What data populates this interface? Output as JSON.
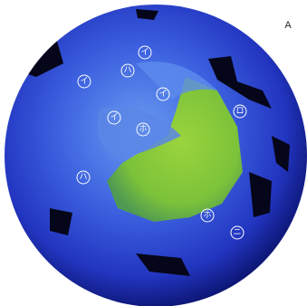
{
  "panel_label": "A",
  "labels": [
    "イ",
    "ハ",
    "イ",
    "イ",
    "ロ",
    "イ",
    "ホ",
    "ハ",
    "ホ",
    "ニ"
  ]
}
